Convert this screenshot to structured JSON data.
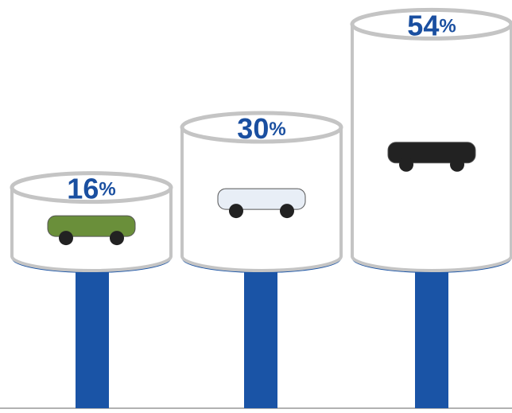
{
  "chart_data": {
    "type": "bar",
    "values": [
      16,
      30,
      54
    ],
    "value_labels": [
      "16%",
      "30%",
      "54%"
    ],
    "color": "#1a54a6"
  }
}
